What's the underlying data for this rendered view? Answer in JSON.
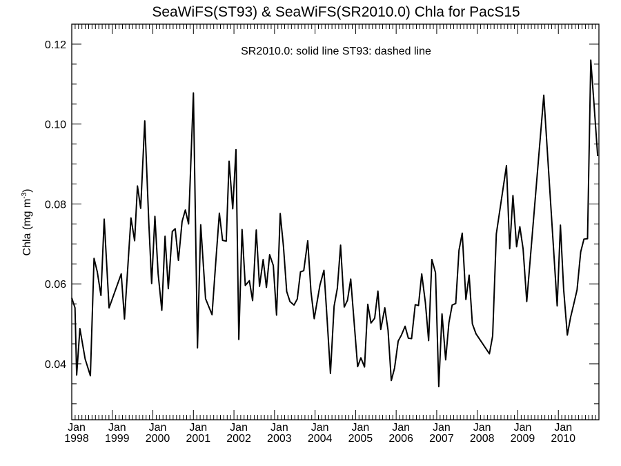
{
  "chart_data": {
    "type": "line",
    "title": "SeaWiFS(ST93) & SeaWiFS(SR2010.0)  Chla for PacS15",
    "annotation": "SR2010.0: solid line   ST93: dashed line",
    "ylabel": {
      "main": "Chla (mg m",
      "sup": "-3",
      "end": ")"
    },
    "xlim": [
      1998.0,
      2011.0
    ],
    "ylim": [
      0.026,
      0.125
    ],
    "y_ticks": [
      "0.04",
      "0.06",
      "0.08",
      "0.10",
      "0.12"
    ],
    "x_ticks": [
      {
        "month": "Jan",
        "year": "1998",
        "x": 1998
      },
      {
        "month": "Jan",
        "year": "1999",
        "x": 1999
      },
      {
        "month": "Jan",
        "year": "2000",
        "x": 2000
      },
      {
        "month": "Jan",
        "year": "2001",
        "x": 2001
      },
      {
        "month": "Jan",
        "year": "2002",
        "x": 2002
      },
      {
        "month": "Jan",
        "year": "2003",
        "x": 2003
      },
      {
        "month": "Jan",
        "year": "2004",
        "x": 2004
      },
      {
        "month": "Jan",
        "year": "2005",
        "x": 2005
      },
      {
        "month": "Jan",
        "year": "2006",
        "x": 2006
      },
      {
        "month": "Jan",
        "year": "2007",
        "x": 2007
      },
      {
        "month": "Jan",
        "year": "2008",
        "x": 2008
      },
      {
        "month": "Jan",
        "year": "2009",
        "x": 2009
      },
      {
        "month": "Jan",
        "year": "2010",
        "x": 2010
      }
    ],
    "series": [
      {
        "style": "solid",
        "color": "#000000",
        "x": [
          1998.0,
          1998.08,
          1998.12,
          1998.2,
          1998.33,
          1998.46,
          1998.55,
          1998.63,
          1998.72,
          1998.8,
          1998.92,
          1999.22,
          1999.3,
          1999.46,
          1999.55,
          1999.62,
          1999.7,
          1999.8,
          1999.9,
          1999.97,
          2000.05,
          2000.13,
          2000.22,
          2000.3,
          2000.38,
          2000.48,
          2000.55,
          2000.63,
          2000.72,
          2000.8,
          2000.88,
          2001.0,
          2001.1,
          2001.18,
          2001.3,
          2001.46,
          2001.55,
          2001.64,
          2001.72,
          2001.81,
          2001.88,
          2001.97,
          2002.05,
          2002.12,
          2002.2,
          2002.28,
          2002.38,
          2002.46,
          2002.55,
          2002.63,
          2002.72,
          2002.8,
          2002.88,
          2002.97,
          2003.05,
          2003.14,
          2003.22,
          2003.3,
          2003.38,
          2003.48,
          2003.56,
          2003.64,
          2003.72,
          2003.82,
          2003.9,
          2003.98,
          2004.12,
          2004.22,
          2004.3,
          2004.38,
          2004.47,
          2004.55,
          2004.63,
          2004.72,
          2004.8,
          2004.88,
          2004.97,
          2005.05,
          2005.13,
          2005.22,
          2005.3,
          2005.38,
          2005.47,
          2005.55,
          2005.62,
          2005.72,
          2005.8,
          2005.88,
          2005.96,
          2006.05,
          2006.13,
          2006.22,
          2006.3,
          2006.38,
          2006.47,
          2006.55,
          2006.63,
          2006.72,
          2006.8,
          2006.88,
          2006.97,
          2007.05,
          2007.13,
          2007.22,
          2007.3,
          2007.38,
          2007.47,
          2007.55,
          2007.63,
          2007.72,
          2007.8,
          2007.88,
          2007.97,
          2008.3,
          2008.38,
          2008.47,
          2008.72,
          2008.8,
          2008.88,
          2008.97,
          2009.05,
          2009.13,
          2009.22,
          2009.64,
          2009.97,
          2010.05,
          2010.13,
          2010.22,
          2010.3,
          2010.38,
          2010.46,
          2010.55,
          2010.63,
          2010.72,
          2010.8,
          2010.88,
          2010.97
        ],
        "y": [
          0.0565,
          0.054,
          0.0372,
          0.0488,
          0.0412,
          0.037,
          0.0664,
          0.063,
          0.0571,
          0.0762,
          0.054,
          0.0625,
          0.0512,
          0.0765,
          0.0708,
          0.0845,
          0.0789,
          0.1008,
          0.0752,
          0.0601,
          0.0769,
          0.0625,
          0.0534,
          0.0719,
          0.0588,
          0.0731,
          0.0738,
          0.0659,
          0.0756,
          0.0785,
          0.075,
          0.1078,
          0.044,
          0.0748,
          0.0563,
          0.0523,
          0.0652,
          0.0777,
          0.0709,
          0.0707,
          0.0907,
          0.0788,
          0.0936,
          0.0461,
          0.0736,
          0.0596,
          0.0608,
          0.0558,
          0.0735,
          0.0594,
          0.0661,
          0.0591,
          0.0673,
          0.0646,
          0.0522,
          0.0776,
          0.0694,
          0.0581,
          0.0556,
          0.0547,
          0.0562,
          0.063,
          0.0633,
          0.0708,
          0.058,
          0.0513,
          0.0597,
          0.0634,
          0.0508,
          0.0376,
          0.0544,
          0.0589,
          0.0697,
          0.0542,
          0.0559,
          0.0612,
          0.0496,
          0.0393,
          0.0415,
          0.0392,
          0.0549,
          0.0502,
          0.0514,
          0.0582,
          0.0486,
          0.054,
          0.0484,
          0.0358,
          0.0389,
          0.0457,
          0.0472,
          0.0494,
          0.0464,
          0.0463,
          0.0548,
          0.0546,
          0.0625,
          0.0553,
          0.0458,
          0.0661,
          0.0628,
          0.0343,
          0.0525,
          0.041,
          0.0503,
          0.0547,
          0.0551,
          0.0684,
          0.0727,
          0.0561,
          0.0622,
          0.05,
          0.0475,
          0.0425,
          0.047,
          0.0725,
          0.0896,
          0.0688,
          0.0821,
          0.0693,
          0.0743,
          0.0688,
          0.0556,
          0.1072,
          0.0545,
          0.0747,
          0.0586,
          0.0472,
          0.0516,
          0.055,
          0.0585,
          0.068,
          0.0712,
          0.0713,
          0.116,
          0.105,
          0.092
        ]
      }
    ]
  }
}
